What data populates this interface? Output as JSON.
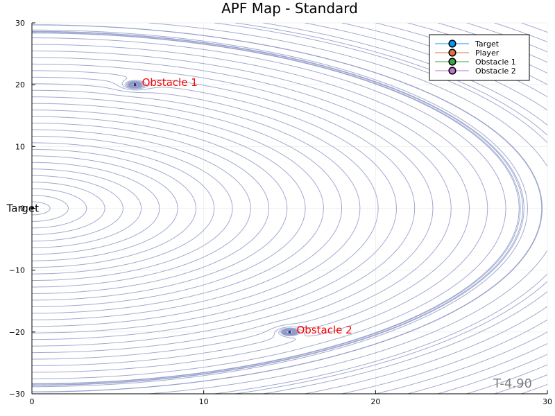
{
  "chart_data": {
    "type": "contour",
    "title": "APF Map - Standard",
    "xlabel": "",
    "ylabel": "",
    "xlim": [
      0,
      30
    ],
    "ylim": [
      -30,
      30
    ],
    "x_ticks": [
      0,
      10,
      20,
      30
    ],
    "y_ticks": [
      -30,
      -20,
      -10,
      0,
      10,
      20,
      30
    ],
    "grid": true,
    "legend_position": "top-right",
    "contour_color": "#8e9ac8",
    "target": {
      "x": 0,
      "y": 0,
      "label": "Target"
    },
    "obstacles": [
      {
        "x": 6,
        "y": 20,
        "label": "Obstacle 1"
      },
      {
        "x": 15,
        "y": -20,
        "label": "Obstacle 2"
      }
    ],
    "legend": [
      {
        "label": "Target",
        "color": "#009af9"
      },
      {
        "label": "Player",
        "color": "#e26f46"
      },
      {
        "label": "Obstacle 1",
        "color": "#3da44d"
      },
      {
        "label": "Obstacle 2",
        "color": "#c271d2"
      }
    ],
    "corner_label": "T-4.90",
    "annotation_color": "#ff0000",
    "corner_label_color": "#808080"
  }
}
